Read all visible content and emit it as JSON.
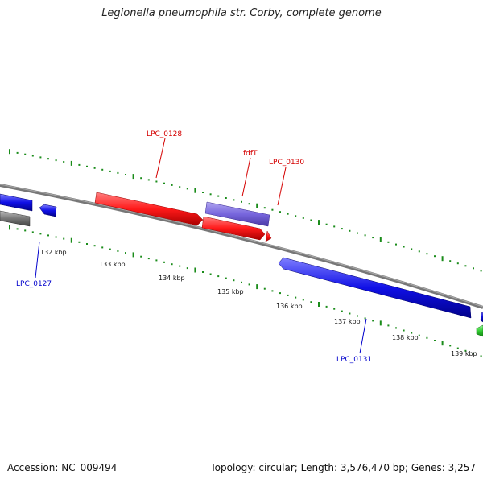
{
  "title": "Legionella pneumophila str. Corby, complete genome",
  "footer": {
    "accession": "Accession: NC_009494",
    "summary": "Topology: circular; Length: 3,576,470 bp; Genes: 3,257"
  },
  "scale_labels": [
    "132 kbp",
    "133 kbp",
    "134 kbp",
    "135 kbp",
    "136 kbp",
    "137 kbp",
    "138 kbp",
    "139 kbp"
  ],
  "genes": {
    "LPC_0127": "LPC_0127",
    "LPC_0128": "LPC_0128",
    "fdfT": "fdfT",
    "LPC_0130": "LPC_0130",
    "LPC_0131": "LPC_0131"
  },
  "colors": {
    "forward_label": "#d40000",
    "reverse_label": "#0000cc",
    "red_gene": "#ff1a1a",
    "blue_gene": "#1010e6",
    "purple_gene": "#7766dd",
    "grey_gene": "#777777",
    "green_gene": "#33cc33",
    "tick_green": "#1a8c1a",
    "backbone": "#888888"
  }
}
